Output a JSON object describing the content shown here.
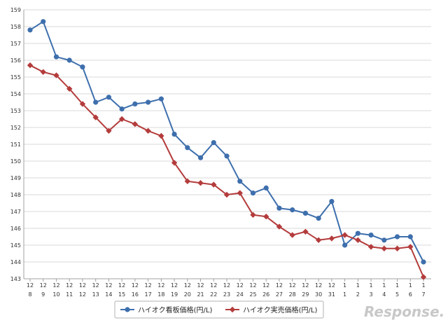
{
  "chart_data": {
    "type": "line",
    "title": "",
    "xlabel": "",
    "ylabel": "",
    "ylim": [
      143,
      159
    ],
    "yticks": [
      143,
      144,
      145,
      146,
      147,
      148,
      149,
      150,
      151,
      152,
      153,
      154,
      155,
      156,
      157,
      158,
      159
    ],
    "categories": [
      {
        "m": "12",
        "d": "8"
      },
      {
        "m": "12",
        "d": "9"
      },
      {
        "m": "12",
        "d": "10"
      },
      {
        "m": "12",
        "d": "11"
      },
      {
        "m": "12",
        "d": "12"
      },
      {
        "m": "12",
        "d": "13"
      },
      {
        "m": "12",
        "d": "14"
      },
      {
        "m": "12",
        "d": "15"
      },
      {
        "m": "12",
        "d": "16"
      },
      {
        "m": "12",
        "d": "17"
      },
      {
        "m": "12",
        "d": "18"
      },
      {
        "m": "12",
        "d": "19"
      },
      {
        "m": "12",
        "d": "20"
      },
      {
        "m": "12",
        "d": "21"
      },
      {
        "m": "12",
        "d": "22"
      },
      {
        "m": "12",
        "d": "23"
      },
      {
        "m": "12",
        "d": "24"
      },
      {
        "m": "12",
        "d": "25"
      },
      {
        "m": "12",
        "d": "26"
      },
      {
        "m": "12",
        "d": "27"
      },
      {
        "m": "12",
        "d": "28"
      },
      {
        "m": "12",
        "d": "29"
      },
      {
        "m": "12",
        "d": "30"
      },
      {
        "m": "12",
        "d": "31"
      },
      {
        "m": "1",
        "d": "1"
      },
      {
        "m": "1",
        "d": "2"
      },
      {
        "m": "1",
        "d": "3"
      },
      {
        "m": "1",
        "d": "4"
      },
      {
        "m": "1",
        "d": "5"
      },
      {
        "m": "1",
        "d": "6"
      },
      {
        "m": "1",
        "d": "7"
      }
    ],
    "series": [
      {
        "name": "ハイオク看板価格(円/L)",
        "color": "#3e6fad",
        "marker": "circle",
        "values": [
          157.8,
          158.3,
          156.2,
          156.0,
          155.6,
          153.5,
          153.8,
          153.1,
          153.4,
          153.5,
          153.7,
          151.6,
          150.8,
          150.2,
          151.1,
          150.3,
          148.8,
          148.1,
          148.4,
          147.2,
          147.1,
          146.9,
          146.6,
          147.6,
          145.0,
          145.7,
          145.6,
          145.3,
          145.5,
          145.5,
          144.0
        ]
      },
      {
        "name": "ハイオク実売価格(円/L)",
        "color": "#b43c3c",
        "marker": "diamond",
        "values": [
          155.7,
          155.3,
          155.1,
          154.3,
          153.4,
          152.6,
          151.8,
          152.5,
          152.2,
          151.8,
          151.5,
          149.9,
          148.8,
          148.7,
          148.6,
          148.0,
          148.1,
          146.8,
          146.7,
          146.1,
          145.6,
          145.8,
          145.3,
          145.4,
          145.6,
          145.3,
          144.9,
          144.8,
          144.8,
          144.9,
          143.1
        ]
      }
    ],
    "legend": "bottom",
    "grid": "horizontal"
  },
  "watermark": "Response."
}
